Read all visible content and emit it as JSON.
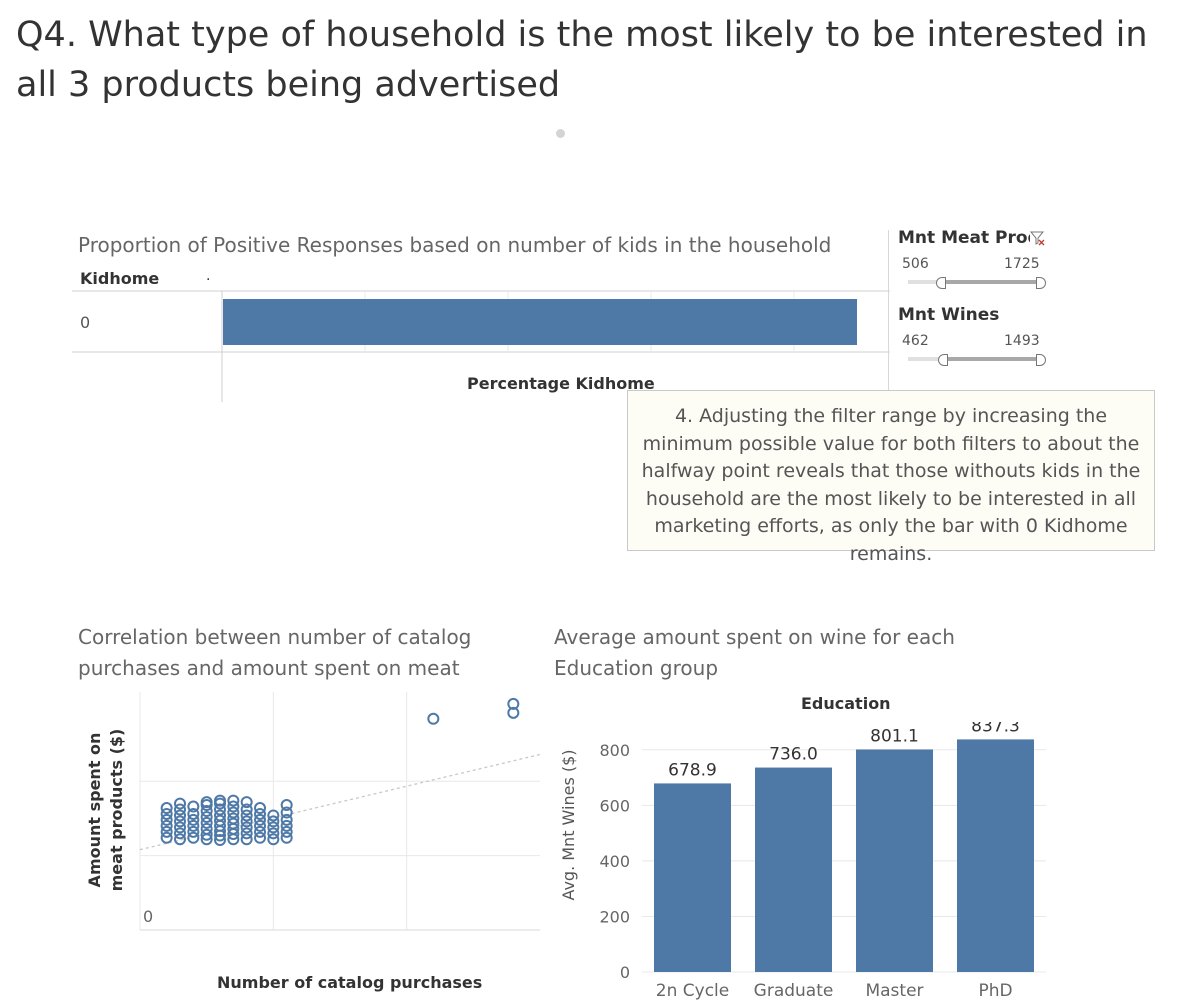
{
  "page": {
    "title": "Q4. What type of household is the most likely to be interested in all 3 products being advertised"
  },
  "kid_chart": {
    "title": "Proportion of Positive Responses based on number of kids in the household",
    "row_header": "Kidhome",
    "row_header_marker": ".",
    "x_axis_label": "Percentage Kidhome"
  },
  "filters": {
    "meat": {
      "title": "Mnt Meat Produ",
      "min": "506",
      "max": "1725",
      "icon": "clear-filter-icon"
    },
    "wines": {
      "title": "Mnt Wines",
      "min": "462",
      "max": "1493"
    }
  },
  "annotation": {
    "text": "4. Adjusting the filter range by increasing the minimum possible value for both filters to about the halfway point reveals that those withouts kids in the household are the most likely to be interested in all marketing efforts, as only the bar with 0 Kidhome remains."
  },
  "scatter_chart": {
    "title": "Correlation between number of catalog purchases and amount spent on meat",
    "x_axis_label": "Number of catalog purchases",
    "y_axis_label": "Amount spent on meat products ($)",
    "zero_label": "0"
  },
  "wine_chart": {
    "title": "Average amount spent on wine for each Education group",
    "header": "Education",
    "y_axis_label": "Avg. Mnt Wines ($)"
  },
  "colors": {
    "bar": "#4e79a7",
    "marker": "#4e79a7",
    "trend": "#c8c8c8",
    "grid": "#e8e8e8"
  },
  "chart_data": [
    {
      "type": "bar",
      "orientation": "horizontal",
      "title": "Proportion of Positive Responses based on number of kids in the household",
      "row_header": "Kidhome",
      "categories": [
        "0"
      ],
      "values": [
        1.0
      ],
      "xlabel": "Percentage Kidhome",
      "grid": true
    },
    {
      "type": "scatter",
      "title": "Correlation between number of catalog purchases and amount spent on meat",
      "xlabel": "Number of catalog purchases",
      "ylabel": "Amount spent on meat products ($)",
      "y_tick_labels": [
        "0"
      ],
      "trend_line": true,
      "grid": true,
      "clusters": [
        {
          "x": 2,
          "y": [
            620,
            660,
            700,
            740,
            780,
            820
          ]
        },
        {
          "x": 3,
          "y": [
            610,
            650,
            690,
            730,
            770,
            810,
            850
          ]
        },
        {
          "x": 4,
          "y": [
            620,
            660,
            700,
            740,
            780,
            830
          ]
        },
        {
          "x": 5,
          "y": [
            610,
            640,
            680,
            720,
            760,
            800,
            840,
            860
          ]
        },
        {
          "x": 6,
          "y": [
            605,
            635,
            665,
            700,
            735,
            770,
            810,
            850,
            870
          ]
        },
        {
          "x": 7,
          "y": [
            610,
            645,
            680,
            715,
            750,
            790,
            830,
            870
          ]
        },
        {
          "x": 8,
          "y": [
            610,
            650,
            690,
            730,
            770,
            810,
            860
          ]
        },
        {
          "x": 9,
          "y": [
            620,
            660,
            700,
            740,
            780,
            820
          ]
        },
        {
          "x": 10,
          "y": [
            610,
            650,
            690,
            730,
            770
          ]
        },
        {
          "x": 11,
          "y": [
            620,
            660,
            700,
            740,
            790,
            840
          ]
        },
        {
          "x": 22,
          "y": [
            1420
          ]
        },
        {
          "x": 28,
          "y": [
            1460,
            1520
          ]
        }
      ]
    },
    {
      "type": "bar",
      "title": "Average amount spent on wine for each Education group",
      "header": "Education",
      "categories": [
        "2n Cycle",
        "Graduate",
        "Master",
        "PhD"
      ],
      "values": [
        678.9,
        736.0,
        801.1,
        837.3
      ],
      "value_labels": [
        "678.9",
        "736.0",
        "801.1",
        "837.3"
      ],
      "ylabel": "Avg. Mnt Wines ($)",
      "y_ticks": [
        0,
        200,
        400,
        600,
        800
      ],
      "ylim": [
        0,
        900
      ],
      "grid": true
    }
  ]
}
